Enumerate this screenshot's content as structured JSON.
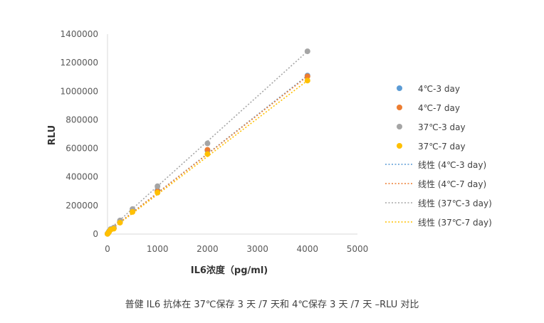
{
  "chart_data": {
    "type": "scatter",
    "title": "",
    "xlabel": "IL6浓度（pg/ml)",
    "ylabel": "RLU",
    "caption": "普健 IL6 抗体在 37℃保存 3 天 /7 天和 4℃保存 3 天 /7 天 –RLU 对比",
    "xlim": [
      0,
      5000
    ],
    "ylim": [
      0,
      1400000
    ],
    "x_ticks": [
      "0",
      "1000",
      "2000",
      "3000",
      "4000",
      "5000"
    ],
    "y_ticks": [
      "0",
      "200000",
      "400000",
      "600000",
      "800000",
      "1000000",
      "1200000",
      "1400000"
    ],
    "grid": false,
    "legend_position": "right",
    "series": [
      {
        "name": "4℃-3 day",
        "color": "#5b9bd5",
        "x": [
          0,
          15.6,
          31.25,
          62.5,
          125,
          250,
          500,
          1000,
          2000,
          4000
        ],
        "y": [
          2000,
          9000,
          18000,
          32000,
          40000,
          85000,
          162000,
          305000,
          585000,
          1110000
        ]
      },
      {
        "name": "4℃-7 day",
        "color": "#ed7d31",
        "x": [
          0,
          15.6,
          31.25,
          62.5,
          125,
          250,
          500,
          1000,
          2000,
          4000
        ],
        "y": [
          2000,
          9000,
          17000,
          31000,
          39000,
          83000,
          158000,
          300000,
          590000,
          1105000
        ]
      },
      {
        "name": "37℃-3 day",
        "color": "#a5a5a5",
        "x": [
          0,
          15.6,
          31.25,
          62.5,
          125,
          250,
          500,
          1000,
          2000,
          4000
        ],
        "y": [
          2000,
          10000,
          20000,
          35000,
          45000,
          95000,
          175000,
          335000,
          635000,
          1280000
        ]
      },
      {
        "name": "37℃-7 day",
        "color": "#ffc000",
        "x": [
          0,
          15.6,
          31.25,
          62.5,
          125,
          250,
          500,
          1000,
          2000,
          4000
        ],
        "y": [
          1500,
          8000,
          16000,
          30000,
          38000,
          80000,
          155000,
          290000,
          560000,
          1075000
        ]
      }
    ],
    "trendlines": [
      {
        "name": "线性 (4℃-3 day)",
        "color": "#5b9bd5",
        "x": [
          0,
          4000
        ],
        "y": [
          15000,
          1110000
        ]
      },
      {
        "name": "线性 (4℃-7 day)",
        "color": "#ed7d31",
        "x": [
          0,
          4000
        ],
        "y": [
          15000,
          1105000
        ]
      },
      {
        "name": "线性 (37℃-3 day)",
        "color": "#a5a5a5",
        "x": [
          0,
          4000
        ],
        "y": [
          20000,
          1280000
        ]
      },
      {
        "name": "线性 (37℃-7 day)",
        "color": "#ffc000",
        "x": [
          0,
          4000
        ],
        "y": [
          12000,
          1075000
        ]
      }
    ]
  }
}
